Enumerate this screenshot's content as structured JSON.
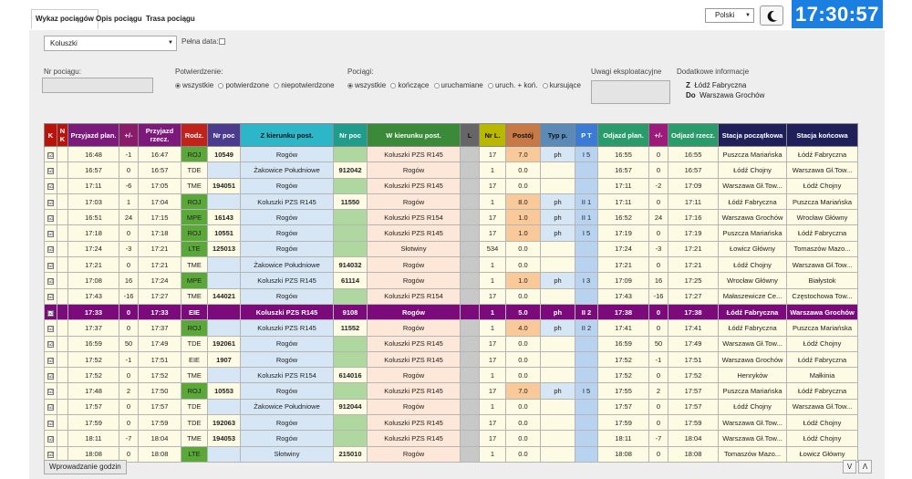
{
  "tabs": [
    "Wykaz pociągów",
    "Opis pociągu",
    "Trasa pociągu"
  ],
  "language": "Polski",
  "clock": "17:30:57",
  "filters": {
    "station": "Koluszki",
    "full_date_label": "Pełna data:",
    "train_no_label": "Nr pociągu:",
    "confirmation_label": "Potwierdzenie:",
    "confirmation_options": [
      "wszystkie",
      "potwierdzone",
      "niepotwierdzone"
    ],
    "trains_label": "Pociągi:",
    "trains_options": [
      "wszystkie",
      "kończące",
      "uruchamiane",
      "uruch. + koń.",
      "kursujące"
    ],
    "remarks_label": "Uwagi eksploatacyjne",
    "extra_label": "Dodatkowe informacje",
    "from_label": "Z",
    "from_value": "Łódź Fabryczna",
    "to_label": "Do",
    "to_value": "Warszawa Grochów"
  },
  "columns": [
    "K",
    "N K",
    "Przyjazd plan.",
    "+/-",
    "Przyjazd rzecz.",
    "Rodz.",
    "Nr poc",
    "Z kierunku post.",
    "Nr poc",
    "W kierunku post.",
    "L",
    "Nr L.",
    "Postój",
    "Typ p.",
    "P T",
    "Odjazd plan.",
    "+/-",
    "Odjazd rzecz.",
    "Stacja początkowa",
    "Stacja końcowa"
  ],
  "rows": [
    {
      "k": "☑",
      "arr_plan": "16:48",
      "arr_d": "-1",
      "arr_real": "16:47",
      "kind": "ROJ",
      "nr_in": "10549",
      "from": "Rogów",
      "nr_out": "",
      "to": "Koluszki PZS R145",
      "L": "",
      "nrl": "17",
      "stop": "7.0",
      "typ": "ph",
      "pt": "I 5",
      "dep_plan": "16:55",
      "dep_d": "0",
      "dep_real": "16:55",
      "start": "Puszcza Mariańska",
      "end": "Łódź Fabryczna"
    },
    {
      "k": "☑",
      "arr_plan": "16:57",
      "arr_d": "0",
      "arr_real": "16:57",
      "kind": "TDE",
      "nr_in": "",
      "from": "Żakowice Południowe",
      "nr_out": "912042",
      "to": "Rogów",
      "L": "",
      "nrl": "1",
      "stop": "0.0",
      "typ": "",
      "pt": "",
      "dep_plan": "16:57",
      "dep_d": "0",
      "dep_real": "16:57",
      "start": "Łódź Chojny",
      "end": "Warszawa Gł.Tow..."
    },
    {
      "k": "☑",
      "arr_plan": "17:11",
      "arr_d": "-6",
      "arr_real": "17:05",
      "kind": "TME",
      "nr_in": "194051",
      "from": "Rogów",
      "nr_out": "",
      "to": "Koluszki PZS R145",
      "L": "",
      "nrl": "17",
      "stop": "0.0",
      "typ": "",
      "pt": "",
      "dep_plan": "17:11",
      "dep_d": "-2",
      "dep_real": "17:09",
      "start": "Warszawa Gł.Tow...",
      "end": "Łódź Chojny"
    },
    {
      "k": "☑",
      "arr_plan": "17:03",
      "arr_d": "1",
      "arr_real": "17:04",
      "kind": "ROJ",
      "nr_in": "",
      "from": "Koluszki PZS R145",
      "nr_out": "11550",
      "to": "Rogów",
      "L": "",
      "nrl": "1",
      "stop": "8.0",
      "typ": "ph",
      "pt": "II 1",
      "dep_plan": "17:11",
      "dep_d": "0",
      "dep_real": "17:11",
      "start": "Łódź Fabryczna",
      "end": "Puszcza Mariańska"
    },
    {
      "k": "☑",
      "arr_plan": "16:51",
      "arr_d": "24",
      "arr_real": "17:15",
      "kind": "MPE",
      "nr_in": "16143",
      "from": "Rogów",
      "nr_out": "",
      "to": "Koluszki PZS R154",
      "L": "",
      "nrl": "17",
      "stop": "1.0",
      "typ": "ph",
      "pt": "II 1",
      "dep_plan": "16:52",
      "dep_d": "24",
      "dep_real": "17:16",
      "start": "Warszawa Grochów",
      "end": "Wrocław Główny"
    },
    {
      "k": "☑",
      "arr_plan": "17:18",
      "arr_d": "0",
      "arr_real": "17:18",
      "kind": "ROJ",
      "nr_in": "10551",
      "from": "Rogów",
      "nr_out": "",
      "to": "Koluszki PZS R145",
      "L": "",
      "nrl": "17",
      "stop": "1.0",
      "typ": "ph",
      "pt": "I 5",
      "dep_plan": "17:19",
      "dep_d": "0",
      "dep_real": "17:19",
      "start": "Puszcza Mariańska",
      "end": "Łódź Fabryczna"
    },
    {
      "k": "☑",
      "arr_plan": "17:24",
      "arr_d": "-3",
      "arr_real": "17:21",
      "kind": "LTE",
      "nr_in": "125013",
      "from": "Rogów",
      "nr_out": "",
      "to": "Słotwiny",
      "L": "",
      "nrl": "534",
      "stop": "0.0",
      "typ": "",
      "pt": "",
      "dep_plan": "17:24",
      "dep_d": "-3",
      "dep_real": "17:21",
      "start": "Łowicz Główny",
      "end": "Tomaszów Mazo..."
    },
    {
      "k": "☑",
      "arr_plan": "17:21",
      "arr_d": "0",
      "arr_real": "17:21",
      "kind": "TME",
      "nr_in": "",
      "from": "Żakowice Południowe",
      "nr_out": "914032",
      "to": "Rogów",
      "L": "",
      "nrl": "1",
      "stop": "0.0",
      "typ": "",
      "pt": "",
      "dep_plan": "17:21",
      "dep_d": "0",
      "dep_real": "17:21",
      "start": "Łódź Chojny",
      "end": "Warszawa Gł.Tow..."
    },
    {
      "k": "☑",
      "arr_plan": "17:08",
      "arr_d": "16",
      "arr_real": "17:24",
      "kind": "MPE",
      "nr_in": "",
      "from": "Koluszki PZS R145",
      "nr_out": "61114",
      "to": "Rogów",
      "L": "",
      "nrl": "1",
      "stop": "1.0",
      "typ": "ph",
      "pt": "I 3",
      "dep_plan": "17:09",
      "dep_d": "16",
      "dep_real": "17:25",
      "start": "Wrocław Główny",
      "end": "Białystok"
    },
    {
      "k": "☑",
      "arr_plan": "17:43",
      "arr_d": "-16",
      "arr_real": "17:27",
      "kind": "TME",
      "nr_in": "144021",
      "from": "Rogów",
      "nr_out": "",
      "to": "Koluszki PZS R154",
      "L": "",
      "nrl": "17",
      "stop": "0.0",
      "typ": "",
      "pt": "",
      "dep_plan": "17:43",
      "dep_d": "-16",
      "dep_real": "17:27",
      "start": "Małaszewicze Ce...",
      "end": "Częstochowa Tow..."
    },
    {
      "k": "☑",
      "arr_plan": "17:33",
      "arr_d": "0",
      "arr_real": "17:33",
      "kind": "EIE",
      "nr_in": "",
      "from": "Koluszki PZS R145",
      "nr_out": "9108",
      "to": "Rogów",
      "L": "",
      "nrl": "1",
      "stop": "5.0",
      "typ": "ph",
      "pt": "II 2",
      "dep_plan": "17:38",
      "dep_d": "0",
      "dep_real": "17:38",
      "start": "Łódź Fabryczna",
      "end": "Warszawa Grochów",
      "hl": true
    },
    {
      "k": "☑",
      "arr_plan": "17:37",
      "arr_d": "0",
      "arr_real": "17:37",
      "kind": "ROJ",
      "nr_in": "",
      "from": "Koluszki PZS R145",
      "nr_out": "11552",
      "to": "Rogów",
      "L": "",
      "nrl": "1",
      "stop": "4.0",
      "typ": "ph",
      "pt": "II 2",
      "dep_plan": "17:41",
      "dep_d": "0",
      "dep_real": "17:41",
      "start": "Łódź Fabryczna",
      "end": "Puszcza Mariańska"
    },
    {
      "k": "☑",
      "arr_plan": "16:59",
      "arr_d": "50",
      "arr_real": "17:49",
      "kind": "TDE",
      "nr_in": "192061",
      "from": "Rogów",
      "nr_out": "",
      "to": "Koluszki PZS R145",
      "L": "",
      "nrl": "17",
      "stop": "0.0",
      "typ": "",
      "pt": "",
      "dep_plan": "16:59",
      "dep_d": "50",
      "dep_real": "17:49",
      "start": "Warszawa Gł.Tow...",
      "end": "Łódź Chojny"
    },
    {
      "k": "☑",
      "arr_plan": "17:52",
      "arr_d": "-1",
      "arr_real": "17:51",
      "kind": "EIE",
      "nr_in": "1907",
      "from": "Rogów",
      "nr_out": "",
      "to": "Koluszki PZS R145",
      "L": "",
      "nrl": "17",
      "stop": "0.0",
      "typ": "",
      "pt": "",
      "dep_plan": "17:52",
      "dep_d": "-1",
      "dep_real": "17:51",
      "start": "Warszawa Grochów",
      "end": "Łódź Fabryczna"
    },
    {
      "k": "☑",
      "arr_plan": "17:52",
      "arr_d": "0",
      "arr_real": "17:52",
      "kind": "TME",
      "nr_in": "",
      "from": "Koluszki PZS R154",
      "nr_out": "614016",
      "to": "Rogów",
      "L": "",
      "nrl": "1",
      "stop": "0.0",
      "typ": "",
      "pt": "",
      "dep_plan": "17:52",
      "dep_d": "0",
      "dep_real": "17:52",
      "start": "Henryków",
      "end": "Małkinia"
    },
    {
      "k": "☑",
      "arr_plan": "17:48",
      "arr_d": "2",
      "arr_real": "17:50",
      "kind": "ROJ",
      "nr_in": "10553",
      "from": "Rogów",
      "nr_out": "",
      "to": "Koluszki PZS R145",
      "L": "",
      "nrl": "17",
      "stop": "7.0",
      "typ": "ph",
      "pt": "I 5",
      "dep_plan": "17:55",
      "dep_d": "2",
      "dep_real": "17:57",
      "start": "Puszcza Mariańska",
      "end": "Łódź Fabryczna"
    },
    {
      "k": "☑",
      "arr_plan": "17:57",
      "arr_d": "0",
      "arr_real": "17:57",
      "kind": "TDE",
      "nr_in": "",
      "from": "Żakowice Południowe",
      "nr_out": "912044",
      "to": "Rogów",
      "L": "",
      "nrl": "1",
      "stop": "0.0",
      "typ": "",
      "pt": "",
      "dep_plan": "17:57",
      "dep_d": "0",
      "dep_real": "17:57",
      "start": "Łódź Chojny",
      "end": "Warszawa Gł.Tow..."
    },
    {
      "k": "☑",
      "arr_plan": "17:59",
      "arr_d": "0",
      "arr_real": "17:59",
      "kind": "TDE",
      "nr_in": "192063",
      "from": "Rogów",
      "nr_out": "",
      "to": "Koluszki PZS R145",
      "L": "",
      "nrl": "17",
      "stop": "0.0",
      "typ": "",
      "pt": "",
      "dep_plan": "17:59",
      "dep_d": "0",
      "dep_real": "17:59",
      "start": "Warszawa Gł.Tow...",
      "end": "Łódź Chojny"
    },
    {
      "k": "☑",
      "arr_plan": "18:11",
      "arr_d": "-7",
      "arr_real": "18:04",
      "kind": "TME",
      "nr_in": "194053",
      "from": "Rogów",
      "nr_out": "",
      "to": "Koluszki PZS R145",
      "L": "",
      "nrl": "17",
      "stop": "0.0",
      "typ": "",
      "pt": "",
      "dep_plan": "18:11",
      "dep_d": "-7",
      "dep_real": "18:04",
      "start": "Warszawa Gł.Tow...",
      "end": "Łódź Chojny"
    },
    {
      "k": "☑",
      "arr_plan": "18:08",
      "arr_d": "0",
      "arr_real": "18:08",
      "kind": "LTE",
      "nr_in": "",
      "from": "Słotwiny",
      "nr_out": "215010",
      "to": "Rogów",
      "L": "",
      "nrl": "1",
      "stop": "0.0",
      "typ": "",
      "pt": "",
      "dep_plan": "18:08",
      "dep_d": "0",
      "dep_real": "18:08",
      "start": "Tomaszów Mazo...",
      "end": "Łowicz Główny"
    }
  ],
  "footer_button": "Wprowadzanie godzin",
  "nav_down": "V",
  "nav_up": "Λ",
  "colors": {
    "clock_bg": "#1a7fe0",
    "header_dark": "#1f1f5a",
    "highlight_row": "#7b0b7b",
    "row_bg": "#fdfbe3",
    "kind_green": "#5aa838",
    "station_blue": "#d7e6f4",
    "station_peach": "#fde7d8",
    "nr_green": "#aed8a0"
  }
}
